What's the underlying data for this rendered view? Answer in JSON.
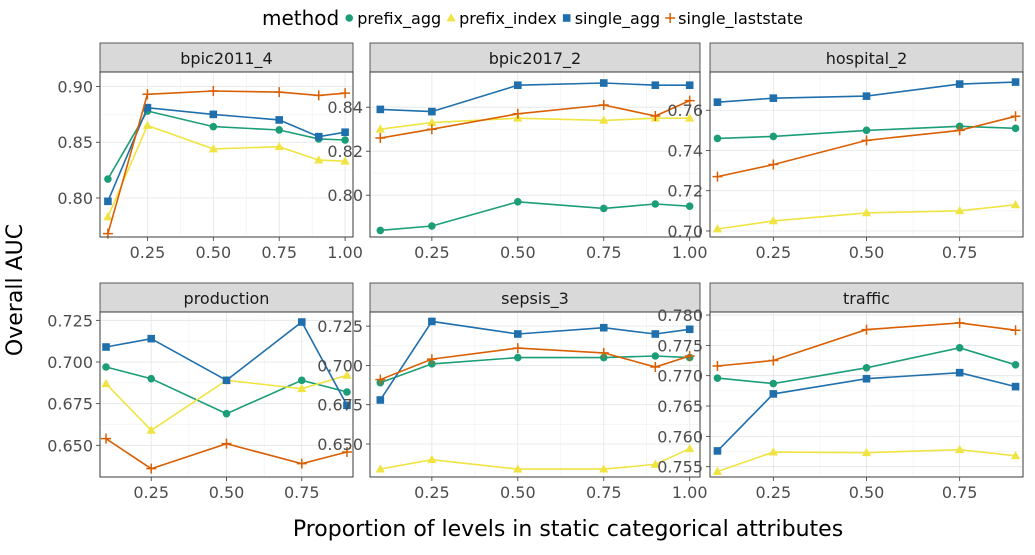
{
  "legend": {
    "title": "method",
    "items": [
      {
        "name": "prefix_agg",
        "color": "#1b9e77",
        "marker": "circle"
      },
      {
        "name": "prefix_index",
        "color": "#f0e442",
        "marker": "triangle"
      },
      {
        "name": "single_agg",
        "color": "#1f6fad",
        "marker": "square"
      },
      {
        "name": "single_laststate",
        "color": "#d95f02",
        "marker": "plus"
      }
    ]
  },
  "axes": {
    "ylabel": "Overall AUC",
    "xlabel": "Proportion of levels in static categorical attributes"
  },
  "chart_data": [
    {
      "type": "line",
      "title": "bpic2011_4",
      "xlim": [
        0.07,
        1.03
      ],
      "ylim": [
        0.765,
        0.913
      ],
      "xticks": [
        0.25,
        0.5,
        0.75,
        1.0
      ],
      "xtick_labels": [
        "0.25",
        "0.50",
        "0.75",
        "1.00"
      ],
      "yticks": [
        0.8,
        0.85,
        0.9
      ],
      "ytick_labels": [
        "0.80",
        "0.85",
        "0.90"
      ],
      "x": [
        0.1,
        0.25,
        0.5,
        0.75,
        0.9,
        1.0
      ],
      "series": [
        {
          "name": "prefix_agg",
          "values": [
            0.817,
            0.878,
            0.864,
            0.861,
            0.853,
            0.852
          ]
        },
        {
          "name": "prefix_index",
          "values": [
            0.783,
            0.865,
            0.844,
            0.846,
            0.834,
            0.833
          ]
        },
        {
          "name": "single_agg",
          "values": [
            0.797,
            0.881,
            0.875,
            0.87,
            0.855,
            0.859
          ]
        },
        {
          "name": "single_laststate",
          "values": [
            0.768,
            0.893,
            0.896,
            0.895,
            0.892,
            0.894
          ]
        }
      ]
    },
    {
      "type": "line",
      "title": "bpic2017_2",
      "xlim": [
        0.07,
        1.03
      ],
      "ylim": [
        0.781,
        0.856
      ],
      "xticks": [
        0.25,
        0.5,
        0.75,
        1.0
      ],
      "xtick_labels": [
        "0.25",
        "0.50",
        "0.75",
        "1.00"
      ],
      "yticks": [
        0.8,
        0.82,
        0.84
      ],
      "ytick_labels": [
        "0.80",
        "0.82",
        "0.84"
      ],
      "x": [
        0.1,
        0.25,
        0.5,
        0.75,
        0.9,
        1.0
      ],
      "series": [
        {
          "name": "prefix_agg",
          "values": [
            0.784,
            0.786,
            0.797,
            0.794,
            0.796,
            0.795
          ]
        },
        {
          "name": "prefix_index",
          "values": [
            0.83,
            0.833,
            0.835,
            0.834,
            0.835,
            0.835
          ]
        },
        {
          "name": "single_agg",
          "values": [
            0.839,
            0.838,
            0.85,
            0.851,
            0.85,
            0.85
          ]
        },
        {
          "name": "single_laststate",
          "values": [
            0.826,
            0.83,
            0.837,
            0.841,
            0.836,
            0.843
          ]
        }
      ]
    },
    {
      "type": "line",
      "title": "hospital_2",
      "xlim": [
        0.08,
        0.92
      ],
      "ylim": [
        0.697,
        0.779
      ],
      "xticks": [
        0.25,
        0.5,
        0.75
      ],
      "xtick_labels": [
        "0.25",
        "0.50",
        "0.75"
      ],
      "yticks": [
        0.7,
        0.72,
        0.74,
        0.76
      ],
      "ytick_labels": [
        "0.70",
        "0.72",
        "0.74",
        "0.76"
      ],
      "x": [
        0.1,
        0.25,
        0.5,
        0.75,
        0.9
      ],
      "series": [
        {
          "name": "prefix_agg",
          "values": [
            0.746,
            0.747,
            0.75,
            0.752,
            0.751
          ]
        },
        {
          "name": "prefix_index",
          "values": [
            0.701,
            0.705,
            0.709,
            0.71,
            0.713
          ]
        },
        {
          "name": "single_agg",
          "values": [
            0.764,
            0.766,
            0.767,
            0.773,
            0.774
          ]
        },
        {
          "name": "single_laststate",
          "values": [
            0.727,
            0.733,
            0.745,
            0.75,
            0.757
          ]
        }
      ]
    },
    {
      "type": "line",
      "title": "production",
      "xlim": [
        0.08,
        0.92
      ],
      "ylim": [
        0.631,
        0.73
      ],
      "xticks": [
        0.25,
        0.5,
        0.75
      ],
      "xtick_labels": [
        "0.25",
        "0.50",
        "0.75"
      ],
      "yticks": [
        0.65,
        0.675,
        0.7,
        0.725
      ],
      "ytick_labels": [
        "0.650",
        "0.675",
        "0.700",
        "0.725"
      ],
      "x": [
        0.1,
        0.25,
        0.5,
        0.75,
        0.9
      ],
      "series": [
        {
          "name": "prefix_agg",
          "values": [
            0.697,
            0.69,
            0.669,
            0.689,
            0.682
          ]
        },
        {
          "name": "prefix_index",
          "values": [
            0.687,
            0.659,
            0.689,
            0.684,
            0.692
          ]
        },
        {
          "name": "single_agg",
          "values": [
            0.709,
            0.714,
            0.689,
            0.724,
            0.674
          ]
        },
        {
          "name": "single_laststate",
          "values": [
            0.654,
            0.636,
            0.651,
            0.639,
            0.646
          ]
        }
      ]
    },
    {
      "type": "line",
      "title": "sepsis_3",
      "xlim": [
        0.07,
        1.03
      ],
      "ylim": [
        0.629,
        0.734
      ],
      "xticks": [
        0.25,
        0.5,
        0.75,
        1.0
      ],
      "xtick_labels": [
        "0.25",
        "0.50",
        "0.75",
        "1.00"
      ],
      "yticks": [
        0.65,
        0.675,
        0.7,
        0.725
      ],
      "ytick_labels": [
        "0.650",
        "0.675",
        "0.700",
        "0.725"
      ],
      "x": [
        0.1,
        0.25,
        0.5,
        0.75,
        0.9,
        1.0
      ],
      "series": [
        {
          "name": "prefix_agg",
          "values": [
            0.689,
            0.701,
            0.705,
            0.705,
            0.706,
            0.705
          ]
        },
        {
          "name": "prefix_index",
          "values": [
            0.634,
            0.64,
            0.634,
            0.634,
            0.637,
            0.647
          ]
        },
        {
          "name": "single_agg",
          "values": [
            0.678,
            0.728,
            0.72,
            0.724,
            0.72,
            0.723
          ]
        },
        {
          "name": "single_laststate",
          "values": [
            0.691,
            0.704,
            0.711,
            0.708,
            0.699,
            0.706
          ]
        }
      ]
    },
    {
      "type": "line",
      "title": "traffic",
      "xlim": [
        0.08,
        0.92
      ],
      "ylim": [
        0.7533,
        0.7805
      ],
      "xticks": [
        0.25,
        0.5,
        0.75
      ],
      "xtick_labels": [
        "0.25",
        "0.50",
        "0.75"
      ],
      "yticks": [
        0.755,
        0.76,
        0.765,
        0.77,
        0.775,
        0.78
      ],
      "ytick_labels": [
        "0.755",
        "0.760",
        "0.765",
        "0.770",
        "0.775",
        "0.780"
      ],
      "x": [
        0.1,
        0.25,
        0.5,
        0.75,
        0.9
      ],
      "series": [
        {
          "name": "prefix_agg",
          "values": [
            0.7696,
            0.7687,
            0.7713,
            0.7746,
            0.7718
          ]
        },
        {
          "name": "prefix_index",
          "values": [
            0.7542,
            0.7574,
            0.7573,
            0.7578,
            0.7568
          ]
        },
        {
          "name": "single_agg",
          "values": [
            0.7576,
            0.767,
            0.7695,
            0.7705,
            0.7682
          ]
        },
        {
          "name": "single_laststate",
          "values": [
            0.7716,
            0.7725,
            0.7776,
            0.7787,
            0.7775
          ]
        }
      ]
    }
  ]
}
